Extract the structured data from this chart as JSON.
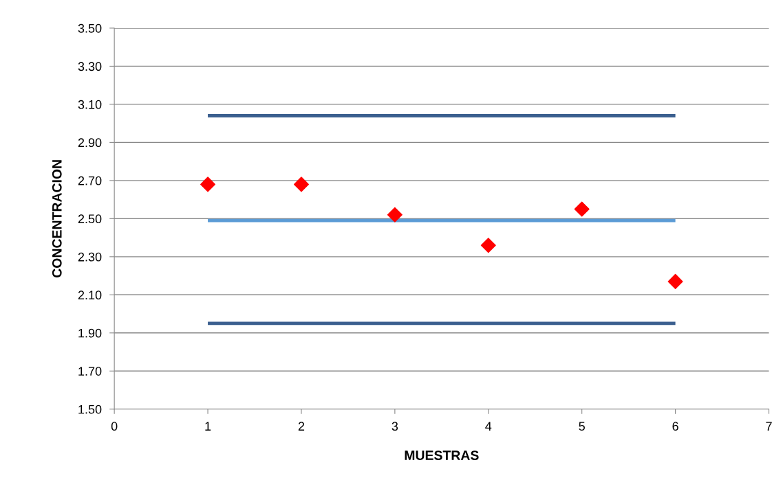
{
  "chart_data": {
    "type": "scatter",
    "xlabel": "MUESTRAS",
    "ylabel": "CONCENTRACION",
    "series": [
      {
        "type": "line",
        "color": "#3b5f8f",
        "x": [
          1,
          6
        ],
        "values": [
          3.04,
          3.04
        ],
        "marker": "none"
      },
      {
        "type": "line",
        "color": "#5b9bd5",
        "x": [
          1,
          6
        ],
        "values": [
          2.49,
          2.49
        ],
        "marker": "none"
      },
      {
        "type": "line",
        "color": "#3b5f8f",
        "x": [
          1,
          6
        ],
        "values": [
          1.95,
          1.95
        ],
        "marker": "none"
      },
      {
        "color": "#ff0000",
        "x": [
          1,
          2,
          3,
          4,
          5,
          6
        ],
        "values": [
          2.68,
          2.68,
          2.52,
          2.36,
          2.55,
          2.17
        ],
        "marker": "diamond"
      }
    ],
    "xlim": [
      0,
      7
    ],
    "xticks": [
      0,
      1,
      2,
      3,
      4,
      5,
      6,
      7
    ],
    "ylim": [
      1.5,
      3.5
    ],
    "yticks": [
      {
        "value": 1.5,
        "label": "1.50"
      },
      {
        "value": 1.7,
        "label": "1.70"
      },
      {
        "value": 1.9,
        "label": "1.90"
      },
      {
        "value": 2.1,
        "label": "2.10"
      },
      {
        "value": 2.3,
        "label": "2.30"
      },
      {
        "value": 2.5,
        "label": "2.50"
      },
      {
        "value": 2.7,
        "label": "2.70"
      },
      {
        "value": 2.9,
        "label": "2.90"
      },
      {
        "value": 3.1,
        "label": "3.10"
      },
      {
        "value": 3.3,
        "label": "3.30"
      },
      {
        "value": 3.5,
        "label": "3.50"
      }
    ],
    "grid": "y",
    "legend": false
  }
}
